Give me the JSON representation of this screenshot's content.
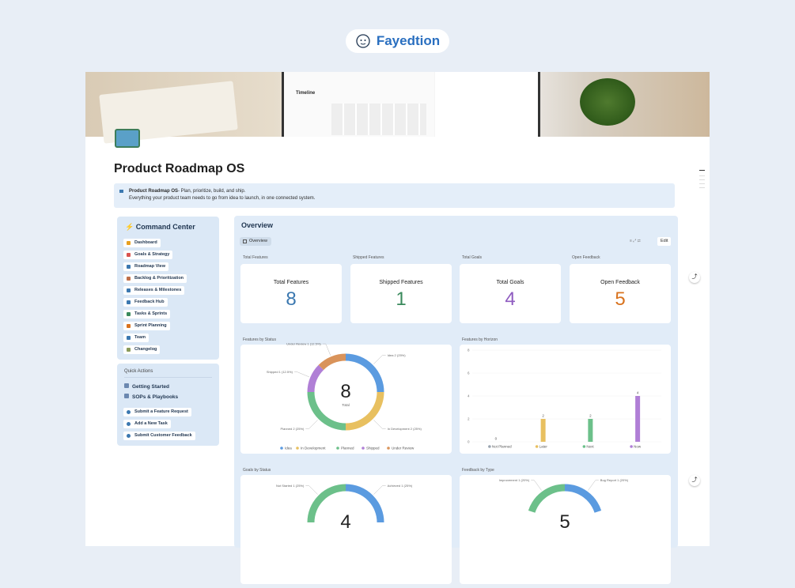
{
  "brand": "Fayedtion",
  "banner": {
    "timeline": "Timeline"
  },
  "title": "Product Roadmap OS",
  "callout": {
    "bold": "Product Roadmap OS",
    "line1": "- Plan, prioritize, build, and ship.",
    "line2": "Everything your product team needs to go from idea to launch, in one connected system."
  },
  "command_center": {
    "title": "Command Center",
    "items": [
      "Dashboard",
      "Goals & Strategy",
      "Roadmap View",
      "Backlog & Prioritization",
      "Releases & Milestones",
      "Feedback Hub",
      "Tasks & Sprints",
      "Sprint Planning",
      "Team",
      "Changelog"
    ]
  },
  "quick_actions": {
    "title": "Quick Actions",
    "links": [
      "Getting Started",
      "SOPs & Playbooks"
    ],
    "buttons": [
      "Submit a Feature Request",
      "Add a New Task",
      "Submit Customer Feedback"
    ]
  },
  "overview": {
    "title": "Overview",
    "tab": "Overview",
    "edit": "Edit",
    "stats": [
      {
        "label": "Total Features",
        "title": "Total Features",
        "value": 8,
        "color": "#3b78b0"
      },
      {
        "label": "Shipped Features",
        "title": "Shipped Features",
        "value": 1,
        "color": "#3a8a5c"
      },
      {
        "label": "Total Goals",
        "title": "Total Goals",
        "value": 4,
        "color": "#8f5cc0"
      },
      {
        "label": "Open Feedback",
        "title": "Open Feedback",
        "value": 5,
        "color": "#d9731f"
      }
    ]
  },
  "charts": [
    {
      "type": "donut",
      "title": "Features by Status",
      "total": 8,
      "total_label": "Total",
      "legend": true,
      "series": [
        {
          "name": "Idea",
          "color": "#5b9be0",
          "values": [
            2
          ],
          "value_labels": [
            "Idea 2 (25%)"
          ]
        },
        {
          "name": "In Development",
          "color": "#e8c060",
          "values": [
            2
          ],
          "value_labels": [
            "In Development 2 (25%)"
          ]
        },
        {
          "name": "Planned",
          "color": "#6cc08a",
          "values": [
            2
          ],
          "value_labels": [
            "Planned 2 (25%)"
          ]
        },
        {
          "name": "Shipped",
          "color": "#b07fd6",
          "values": [
            1
          ],
          "value_labels": [
            "Shipped 1 (12.5%)"
          ]
        },
        {
          "name": "Under Review",
          "color": "#d9935a",
          "values": [
            1
          ],
          "value_labels": [
            "Under Review 1 (12.5%)"
          ]
        }
      ]
    },
    {
      "type": "bar",
      "title": "Features by Horizon",
      "categories": [
        "Not Planned",
        "Later",
        "Next",
        "Now"
      ],
      "colors": [
        "#9aa5b1",
        "#e8c060",
        "#6cc08a",
        "#b07fd6"
      ],
      "values": [
        0,
        2,
        2,
        4
      ],
      "ylim": [
        0,
        8
      ],
      "yticks": [
        0,
        2,
        4,
        6,
        8
      ]
    },
    {
      "type": "donut",
      "title": "Goals by Status",
      "total": 4,
      "series": [
        {
          "name": "Achieved",
          "color": "#5b9be0",
          "values": [
            1
          ],
          "value_labels": [
            "Achieved 1 (25%)"
          ]
        },
        {
          "name": "Not Started",
          "color": "#6cc08a",
          "values": [
            1
          ],
          "value_labels": [
            "Not Started 1 (25%)"
          ]
        }
      ]
    },
    {
      "type": "donut",
      "title": "Feedback by Type",
      "total": 5,
      "series": [
        {
          "name": "Bug Report",
          "color": "#5b9be0",
          "values": [
            1
          ],
          "value_labels": [
            "Bug Report 1 (20%)"
          ]
        },
        {
          "name": "Improvement",
          "color": "#6cc08a",
          "values": [
            1
          ],
          "value_labels": [
            "Improvement 1 (20%)"
          ]
        }
      ]
    }
  ]
}
